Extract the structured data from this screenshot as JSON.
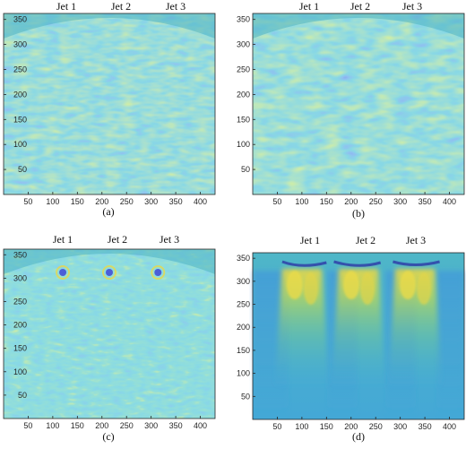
{
  "colors": {
    "base": "#3fb0c6",
    "dark_blue": "#3b3fd6",
    "mid_blue": "#4a8ae0",
    "green": "#8fd46a",
    "yellow": "#e8d84a",
    "panel_d_base": "#4bb4cf"
  },
  "panels": [
    {
      "caption": "(a)",
      "jets": [
        "Jet 1",
        "Jet 2",
        "Jet 3"
      ],
      "y_ticks": [
        "350",
        "300",
        "250",
        "200",
        "150",
        "100",
        "50"
      ],
      "x_ticks": [
        "50",
        "100",
        "150",
        "200",
        "250",
        "300",
        "350",
        "400"
      ]
    },
    {
      "caption": "(b)",
      "jets": [
        "Jet 1",
        "Jet 2",
        "Jet 3"
      ],
      "y_ticks": [
        "350",
        "300",
        "250",
        "200",
        "150",
        "100",
        "50"
      ],
      "x_ticks": [
        "50",
        "100",
        "150",
        "200",
        "250",
        "300",
        "350",
        "400"
      ]
    },
    {
      "caption": "(c)",
      "jets": [
        "Jet 1",
        "Jet 2",
        "Jet 3"
      ],
      "y_ticks": [
        "350",
        "300",
        "250",
        "200",
        "150",
        "100",
        "50"
      ],
      "x_ticks": [
        "50",
        "100",
        "150",
        "200",
        "250",
        "300",
        "350",
        "400"
      ]
    },
    {
      "caption": "(d)",
      "jets": [
        "Jet 1",
        "Jet 2",
        "Jet 3"
      ],
      "y_ticks": [
        "350",
        "300",
        "250",
        "200",
        "150",
        "100",
        "50"
      ],
      "x_ticks": [
        "50",
        "100",
        "150",
        "200",
        "250",
        "300",
        "350",
        "400"
      ]
    }
  ]
}
